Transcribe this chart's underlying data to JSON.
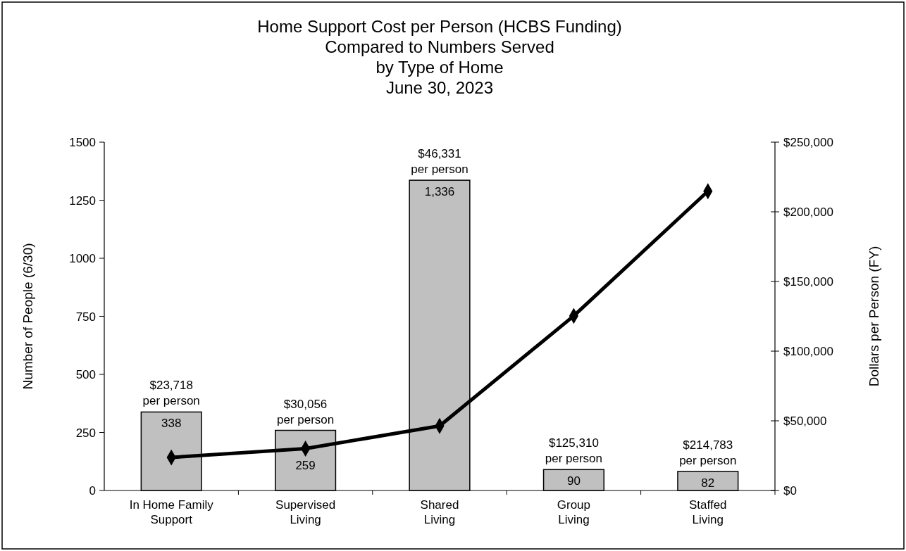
{
  "chart_data": {
    "type": "bar",
    "title": "Home Support Cost per Person (HCBS Funding)\nCompared to Numbers Served\nby Type of Home",
    "subtitle": "June 30, 2023",
    "ylabel": "Number of People (6/30)",
    "y2label": "Dollars per Person (FY)",
    "categories": [
      "In Home Family\nSupport",
      "Supervised\nLiving",
      "Shared\nLiving",
      "Group\nLiving",
      "Staffed\nLiving"
    ],
    "series": [
      {
        "color": "#c0c0c0",
        "values": [
          338,
          259,
          1336,
          90,
          82
        ],
        "value_labels": [
          "338",
          "259",
          "1,336",
          "90",
          "82"
        ]
      },
      {
        "type": "line",
        "axis": "y2",
        "color": "#000000",
        "marker": "diamond",
        "line_style": "solid",
        "values": [
          23718,
          30056,
          46331,
          125310,
          214783
        ]
      }
    ],
    "annotations": [
      {
        "text": "$23,718\nper person",
        "x": "In Home Family\nSupport",
        "y": 338
      },
      {
        "text": "$30,056\nper person",
        "x": "Supervised\nLiving",
        "y": 259
      },
      {
        "text": "$46,331\nper person",
        "x": "Shared\nLiving",
        "y": 1336
      },
      {
        "text": "$125,310\nper person",
        "x": "Group\nLiving",
        "y": 90
      },
      {
        "text": "$214,783\nper person",
        "x": "Staffed\nLiving",
        "y": 82
      }
    ],
    "ylim": [
      0,
      1500
    ],
    "yticks": [
      0,
      250,
      500,
      750,
      1000,
      1250,
      1500
    ],
    "y2lim": [
      0,
      250000
    ],
    "y2ticks": [
      {
        "value": 0,
        "label": "$0"
      },
      {
        "value": 50000,
        "label": "$50,000"
      },
      {
        "value": 100000,
        "label": "$100,000"
      },
      {
        "value": 150000,
        "label": "$150,000"
      },
      {
        "value": 200000,
        "label": "$200,000"
      },
      {
        "value": 250000,
        "label": "$250,000"
      }
    ]
  }
}
